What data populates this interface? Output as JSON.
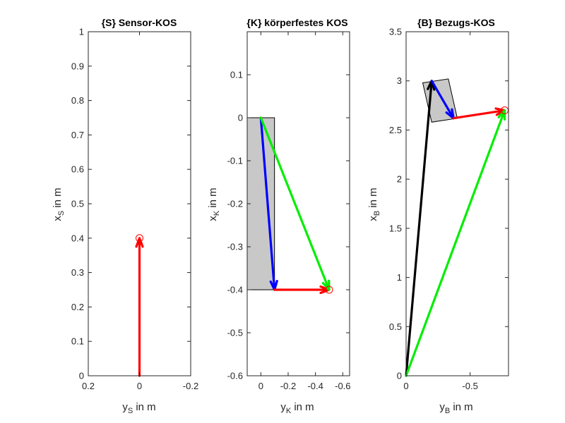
{
  "chart_data": [
    {
      "type": "vector-plot",
      "title": "{S} Sensor-KOS",
      "xlabel": {
        "base": "y",
        "sub": "S",
        "suffix": " in m"
      },
      "ylabel": {
        "base": "x",
        "sub": "S",
        "suffix": " in m"
      },
      "xlim": [
        0.2,
        -0.2
      ],
      "ylim": [
        0,
        1
      ],
      "xticks": [
        0.2,
        0,
        -0.2
      ],
      "xticklabels": [
        "0.2",
        "0",
        "-0.2"
      ],
      "yticks": [
        0,
        0.1,
        0.2,
        0.3,
        0.4,
        0.5,
        0.6,
        0.7,
        0.8,
        0.9,
        1
      ],
      "yticklabels": [
        "0",
        "0.1",
        "0.2",
        "0.3",
        "0.4",
        "0.5",
        "0.6",
        "0.7",
        "0.8",
        "0.9",
        "1"
      ],
      "body_polygon": [],
      "arrows": [
        {
          "from": [
            0,
            0
          ],
          "to": [
            0,
            0.4
          ],
          "color": "#ff0000"
        }
      ],
      "markers": [
        {
          "at": [
            0,
            0.4
          ],
          "color": "#ff0000"
        }
      ]
    },
    {
      "type": "vector-plot",
      "title": "{K} körperfestes KOS",
      "xlabel": {
        "base": "y",
        "sub": "K",
        "suffix": " in m"
      },
      "ylabel": {
        "base": "x",
        "sub": "K",
        "suffix": " in m"
      },
      "xlim": [
        0.1,
        -0.65
      ],
      "ylim": [
        -0.6,
        0.2
      ],
      "xticks": [
        0,
        -0.2,
        -0.4,
        -0.6
      ],
      "xticklabels": [
        "0",
        "-0.2",
        "-0.4",
        "-0.6"
      ],
      "yticks": [
        -0.6,
        -0.5,
        -0.4,
        -0.3,
        -0.2,
        -0.1,
        0,
        0.1
      ],
      "yticklabels": [
        "-0.6",
        "-0.5",
        "-0.4",
        "-0.3",
        "-0.2",
        "-0.1",
        "0",
        "0.1"
      ],
      "body_polygon": [
        [
          0.1,
          0
        ],
        [
          -0.1,
          0
        ],
        [
          -0.1,
          -0.4
        ],
        [
          0.1,
          -0.4
        ]
      ],
      "arrows": [
        {
          "from": [
            0,
            0
          ],
          "to": [
            -0.1,
            -0.4
          ],
          "color": "#0000ff"
        },
        {
          "from": [
            -0.1,
            -0.4
          ],
          "to": [
            -0.5,
            -0.4
          ],
          "color": "#ff0000"
        },
        {
          "from": [
            0,
            0
          ],
          "to": [
            -0.5,
            -0.4
          ],
          "color": "#00ee00"
        }
      ],
      "markers": [
        {
          "at": [
            -0.5,
            -0.4
          ],
          "color": "#ff0000"
        }
      ]
    },
    {
      "type": "vector-plot",
      "title": "{B} Bezugs-KOS",
      "xlabel": {
        "base": "y",
        "sub": "B",
        "suffix": " in m"
      },
      "ylabel": {
        "base": "x",
        "sub": "B",
        "suffix": " in m"
      },
      "xlim": [
        0,
        -0.8
      ],
      "ylim": [
        0,
        3.5
      ],
      "xticks": [
        0,
        -0.5
      ],
      "xticklabels": [
        "0",
        "-0.5"
      ],
      "yticks": [
        0,
        0.5,
        1,
        1.5,
        2,
        2.5,
        3,
        3.5
      ],
      "yticklabels": [
        "0",
        "0.5",
        "1",
        "1.5",
        "2",
        "2.5",
        "3",
        "3.5"
      ],
      "body_polygon": [
        [
          -0.13,
          2.98
        ],
        [
          -0.33,
          3.02
        ],
        [
          -0.4,
          2.62
        ],
        [
          -0.2,
          2.58
        ]
      ],
      "arrows": [
        {
          "from": [
            0,
            0
          ],
          "to": [
            -0.2,
            3
          ],
          "color": "#000000"
        },
        {
          "from": [
            -0.2,
            3
          ],
          "to": [
            -0.37,
            2.62
          ],
          "color": "#0000ff"
        },
        {
          "from": [
            -0.37,
            2.62
          ],
          "to": [
            -0.77,
            2.7
          ],
          "color": "#ff0000"
        },
        {
          "from": [
            0,
            0
          ],
          "to": [
            -0.77,
            2.7
          ],
          "color": "#00ee00"
        }
      ],
      "markers": [
        {
          "at": [
            -0.77,
            2.7
          ],
          "color": "#ff0000"
        }
      ]
    }
  ]
}
